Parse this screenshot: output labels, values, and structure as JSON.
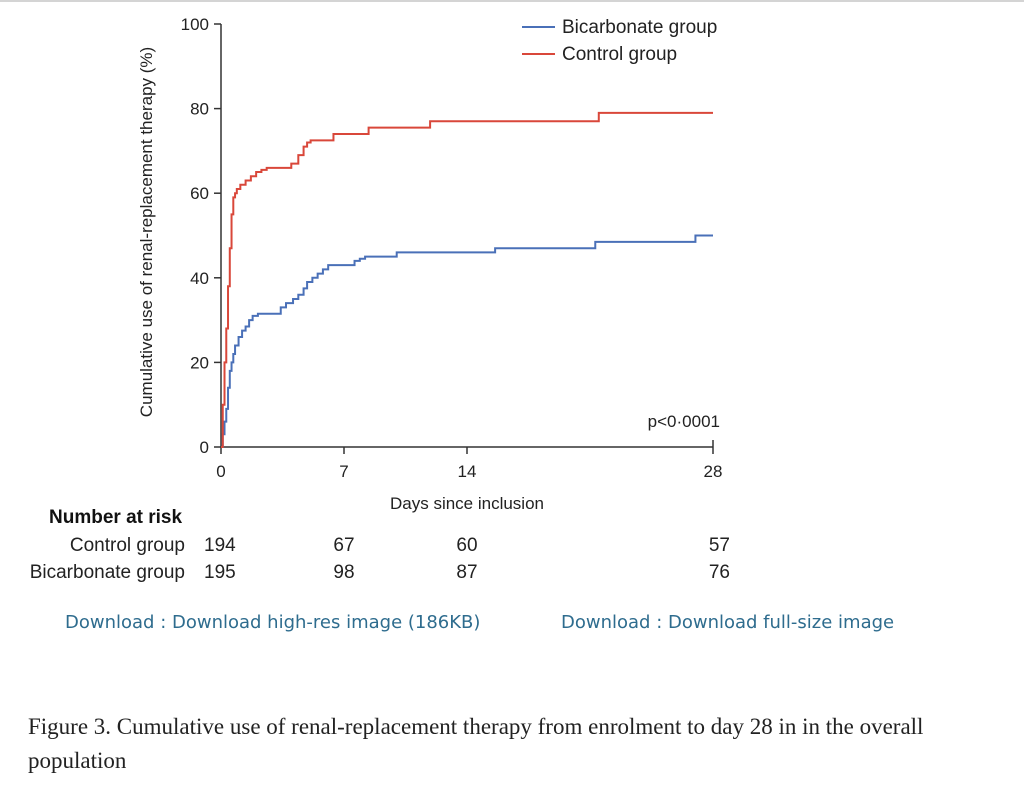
{
  "chart_data": {
    "type": "line",
    "step": true,
    "ylabel": "Cumulative use of renal-replacement therapy (%)",
    "xlabel": "Days since inclusion",
    "xlim": [
      0,
      28
    ],
    "ylim": [
      0,
      100
    ],
    "xticks": [
      0,
      7,
      14,
      28
    ],
    "yticks": [
      0,
      20,
      40,
      60,
      80,
      100
    ],
    "xtick_labels": [
      "0",
      "7",
      "14",
      "28"
    ],
    "ytick_labels": [
      "0",
      "20",
      "40",
      "60",
      "80",
      "100"
    ],
    "legend_position": "top-right",
    "annotation": "p<0·0001",
    "series": [
      {
        "name": "Bicarbonate group",
        "color": "#4a70b8",
        "x": [
          0,
          0.1,
          0.2,
          0.3,
          0.4,
          0.5,
          0.6,
          0.7,
          0.8,
          1.0,
          1.2,
          1.4,
          1.6,
          1.8,
          2.1,
          2.4,
          3.4,
          3.7,
          4.1,
          4.4,
          4.7,
          4.9,
          5.2,
          5.5,
          5.8,
          6.1,
          6.5,
          7.6,
          7.9,
          8.2,
          10.0,
          15.6,
          21.3,
          27.0,
          28.0
        ],
        "y": [
          0,
          3,
          6,
          9,
          14,
          18,
          20,
          22,
          24,
          26,
          27.5,
          28.5,
          30,
          31,
          31.5,
          31.5,
          33,
          34,
          35,
          36,
          37.5,
          39,
          40,
          41,
          42,
          43,
          43,
          44,
          44.5,
          45,
          46,
          47,
          48.5,
          50,
          50
        ]
      },
      {
        "name": "Control group",
        "color": "#d9473a",
        "x": [
          0,
          0.1,
          0.2,
          0.3,
          0.4,
          0.5,
          0.6,
          0.7,
          0.8,
          0.9,
          1.1,
          1.4,
          1.7,
          2.0,
          2.3,
          2.6,
          4.0,
          4.4,
          4.7,
          4.9,
          5.1,
          6.4,
          8.4,
          11.9,
          21.5,
          28.0
        ],
        "y": [
          0,
          10,
          20,
          28,
          38,
          47,
          55,
          59,
          60,
          61,
          62,
          63,
          64,
          65,
          65.5,
          66,
          67,
          69,
          71,
          72,
          72.5,
          74,
          75.5,
          77,
          79,
          79
        ]
      }
    ]
  },
  "risk_table": {
    "heading": "Number at risk",
    "time_points": [
      0,
      7,
      14,
      28
    ],
    "rows": [
      {
        "label": "Control group",
        "values": [
          "194",
          "67",
          "60",
          "57"
        ]
      },
      {
        "label": "Bicarbonate group",
        "values": [
          "195",
          "98",
          "87",
          "76"
        ]
      }
    ]
  },
  "downloads": {
    "high_res": "Download : Download high-res image (186KB)",
    "full_size": "Download : Download full-size image"
  },
  "caption": "Figure 3. Cumulative use of renal-replacement therapy from enrolment to day 28 in in the overall population"
}
